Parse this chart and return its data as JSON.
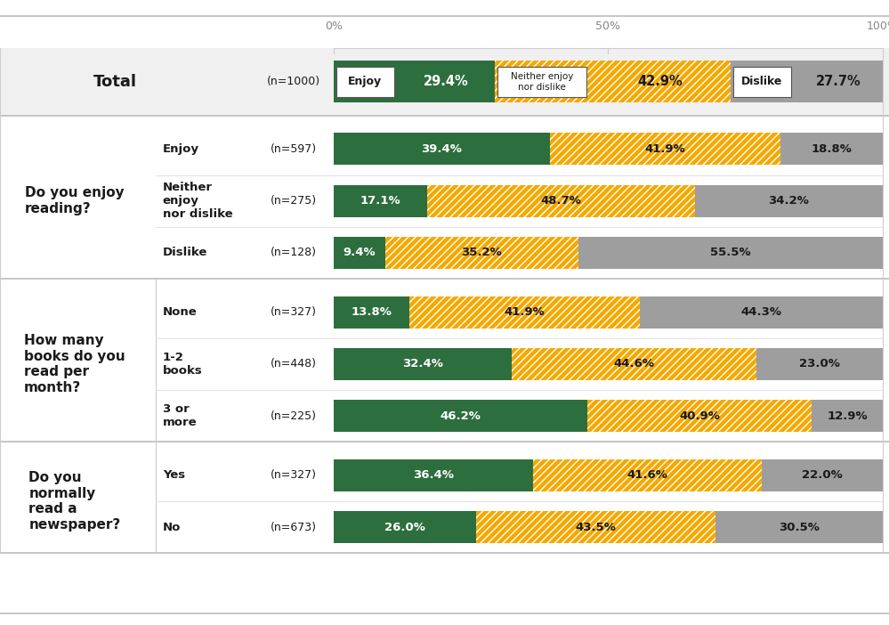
{
  "title_row": {
    "label": "Total",
    "n_label": "(n=1000)",
    "enjoy": 29.4,
    "neither": 42.9,
    "dislike": 27.7
  },
  "groups": [
    {
      "group_label": "Do you enjoy\nreading?",
      "rows": [
        {
          "label": "Enjoy",
          "n_label": "(n=597)",
          "enjoy": 39.4,
          "neither": 41.9,
          "dislike": 18.8
        },
        {
          "label": "Neither\nenjoy\nnor dislike",
          "n_label": "(n=275)",
          "enjoy": 17.1,
          "neither": 48.7,
          "dislike": 34.2
        },
        {
          "label": "Dislike",
          "n_label": "(n=128)",
          "enjoy": 9.4,
          "neither": 35.2,
          "dislike": 55.5
        }
      ]
    },
    {
      "group_label": "How many\nbooks do you\nread per\nmonth?",
      "rows": [
        {
          "label": "None",
          "n_label": "(n=327)",
          "enjoy": 13.8,
          "neither": 41.9,
          "dislike": 44.3
        },
        {
          "label": "1-2\nbooks",
          "n_label": "(n=448)",
          "enjoy": 32.4,
          "neither": 44.6,
          "dislike": 23.0
        },
        {
          "label": "3 or\nmore",
          "n_label": "(n=225)",
          "enjoy": 46.2,
          "neither": 40.9,
          "dislike": 12.9
        }
      ]
    },
    {
      "group_label": "Do you\nnormally\nread a\nnewspaper?",
      "rows": [
        {
          "label": "Yes",
          "n_label": "(n=327)",
          "enjoy": 36.4,
          "neither": 41.6,
          "dislike": 22.0
        },
        {
          "label": "No",
          "n_label": "(n=673)",
          "enjoy": 26.0,
          "neither": 43.5,
          "dislike": 30.5
        }
      ]
    }
  ],
  "color_enjoy": "#2d6e3e",
  "color_neither": "#f5a800",
  "color_dislike": "#9e9e9e",
  "bg_color": "#ffffff",
  "figsize": [
    9.99,
    7.02
  ],
  "dpi": 100
}
